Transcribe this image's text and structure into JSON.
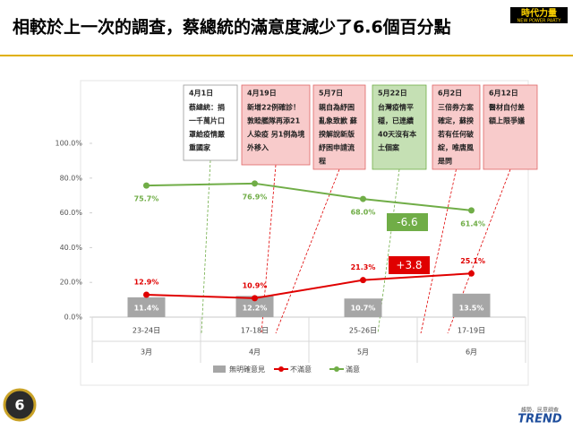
{
  "chart_data": {
    "type": "bar-line",
    "title": "相較於上一次的調查，蔡總統的滿意度減少了6.6個百分點",
    "logo": "時代力量",
    "logo_sub": "NEW POWER PARTY",
    "page_number": "6",
    "footer_logo": "TREND",
    "footer_sub": "趨勢．民意調查",
    "categories": [
      "23-24日",
      "17-18日",
      "25-26日",
      "17-19日"
    ],
    "months": [
      "3月",
      "4月",
      "5月",
      "6月"
    ],
    "ylim": [
      0,
      100
    ],
    "yticks": [
      {
        "value": 0,
        "label": "0.0%"
      },
      {
        "value": 20,
        "label": "20.0%"
      },
      {
        "value": 40,
        "label": "40.0%"
      },
      {
        "value": 60,
        "label": "60.0%"
      },
      {
        "value": 80,
        "label": "80.0%"
      },
      {
        "value": 100,
        "label": "100.0%"
      }
    ],
    "series": [
      {
        "name": "無明確意見",
        "kind": "bar",
        "color": "#a6a6a6",
        "values": [
          11.4,
          12.2,
          10.7,
          13.5
        ],
        "value_labels": [
          "11.4%",
          "12.2%",
          "10.7%",
          "13.5%"
        ]
      },
      {
        "name": "不滿意",
        "kind": "line",
        "color": "#e00000",
        "values": [
          12.9,
          10.9,
          21.3,
          25.1
        ],
        "value_labels": [
          "12.9%",
          "10.9%",
          "21.3%",
          "25.1%"
        ]
      },
      {
        "name": "滿意",
        "kind": "line",
        "color": "#70ad47",
        "values": [
          75.7,
          76.9,
          68.0,
          61.4
        ],
        "value_labels": [
          "75.7%",
          "76.9%",
          "68.0%",
          "61.4%"
        ]
      }
    ],
    "changes": [
      {
        "label": "-6.6",
        "color": "#70ad47"
      },
      {
        "label": "+3.8",
        "color": "#e00000"
      }
    ],
    "annotations": [
      {
        "date": "4月1日",
        "lines": [
          "蔡總統：捐",
          "一千萬片口",
          "罩給疫情嚴",
          "重國家"
        ],
        "color": "#ffffff"
      },
      {
        "date": "4月19日",
        "lines": [
          "新增22例確診！",
          "敦睦艦隊再添21",
          "人染疫 另1例為境",
          "外移入"
        ],
        "color": "#f8cbcb"
      },
      {
        "date": "5月7日",
        "lines": [
          "親自為紓困",
          "亂象致歉 蘇",
          "揆解說新版",
          "紓困申請流",
          "程"
        ],
        "color": "#f8cbcb"
      },
      {
        "date": "5月22日",
        "lines": [
          "台灣疫情平",
          "穩，已連續",
          "40天沒有本",
          "土個案"
        ],
        "color": "#c5e0b4"
      },
      {
        "date": "6月2日",
        "lines": [
          "三倍券方案",
          "確定，蘇揆",
          "若有任何破",
          "綻，唯唐風",
          "是問"
        ],
        "color": "#f8cbcb"
      },
      {
        "date": "6月12日",
        "lines": [
          "醫材自付差",
          "額上限爭議"
        ],
        "color": "#f8cbcb"
      }
    ]
  }
}
